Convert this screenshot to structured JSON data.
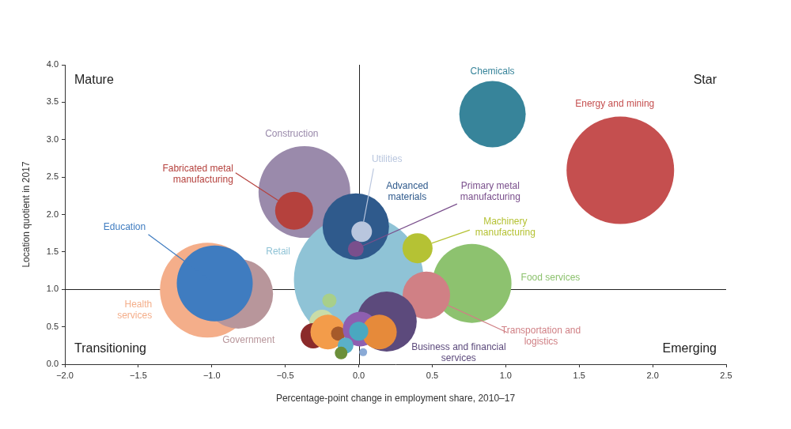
{
  "chart_data": {
    "type": "bubble",
    "x_label": "Percentage-point change in employment share, 2010–17",
    "y_label": "Location quotient in 2017",
    "xlim": [
      -2,
      2.5
    ],
    "ylim": [
      0,
      4
    ],
    "xticks": [
      {
        "value": -2,
        "label": "−2.0"
      },
      {
        "value": -1.5,
        "label": "−1.5"
      },
      {
        "value": -1,
        "label": "−1.0"
      },
      {
        "value": -0.5,
        "label": "−0.5"
      },
      {
        "value": 0,
        "label": "0.0"
      },
      0.5,
      {
        "value": 1,
        "label": "1.0"
      },
      1.5,
      {
        "value": 2,
        "label": "2.0"
      },
      2.5
    ],
    "yticks": [
      {
        "value": 0,
        "label": "0.0"
      },
      0.5,
      {
        "value": 1,
        "label": "1.0"
      },
      1.5,
      {
        "value": 2,
        "label": "2.0"
      },
      2.5,
      {
        "value": 3,
        "label": "3.0"
      },
      3.5,
      {
        "value": 4,
        "label": "4.0"
      }
    ],
    "grid": false,
    "quadrant_lines": {
      "x": 0,
      "y": 1
    },
    "quadrant_labels": [
      "Mature",
      "Star",
      "Transitioning",
      "Emerging"
    ],
    "points": [
      {
        "name": "Energy and mining",
        "x": 1.78,
        "y": 2.59,
        "size": 68,
        "color": "#c54f4f"
      },
      {
        "name": "Chemicals",
        "x": 0.91,
        "y": 3.34,
        "size": 42,
        "color": "#37849a"
      },
      {
        "name": "Construction",
        "x": -0.37,
        "y": 2.3,
        "size": 58,
        "color": "#9a8aab"
      },
      {
        "name": "Fabricated metal manufacturing",
        "x": -0.44,
        "y": 2.05,
        "size": 24,
        "color": "#b5413d"
      },
      {
        "name": "Health services",
        "x": -1.03,
        "y": 0.99,
        "size": 60,
        "color": "#f4ae8a"
      },
      {
        "name": "Government",
        "x": -0.82,
        "y": 0.94,
        "size": 44,
        "color": "#b8969b"
      },
      {
        "name": "Education",
        "x": -0.98,
        "y": 1.08,
        "size": 48,
        "color": "#3f7cc0"
      },
      {
        "name": "Retail",
        "x": 0,
        "y": 1.13,
        "size": 82,
        "color": "#8fc3d6"
      },
      {
        "name": "Advanced materials",
        "x": -0.02,
        "y": 1.84,
        "size": 42,
        "color": "#2f5a8c"
      },
      {
        "name": "Utilities",
        "x": 0.02,
        "y": 1.77,
        "size": 13,
        "color": "#b9c6de"
      },
      {
        "name": "Primary metal manufacturing",
        "x": -0.02,
        "y": 1.54,
        "size": 10,
        "color": "#7a4f8c"
      },
      {
        "name": "Machinery manufacturing",
        "x": 0.4,
        "y": 1.55,
        "size": 19,
        "color": "#b5c234"
      },
      {
        "name": "Food services",
        "x": 0.77,
        "y": 1.08,
        "size": 50,
        "color": "#8dc26f"
      },
      {
        "name": "Transportation and logistics",
        "x": 0.46,
        "y": 0.92,
        "size": 30,
        "color": "#d08085"
      },
      {
        "name": "Business and financial services",
        "x": 0.19,
        "y": 0.57,
        "size": 38,
        "color": "#5c4a7c"
      },
      {
        "name": null,
        "x": -0.2,
        "y": 0.85,
        "size": 9,
        "color": "#a8cf8a"
      },
      {
        "name": null,
        "x": -0.25,
        "y": 0.56,
        "size": 16,
        "color": "#c9dca8"
      },
      {
        "name": null,
        "x": -0.31,
        "y": 0.38,
        "size": 16,
        "color": "#8b2a2a"
      },
      {
        "name": null,
        "x": -0.21,
        "y": 0.43,
        "size": 22,
        "color": "#f39c4a"
      },
      {
        "name": null,
        "x": -0.14,
        "y": 0.41,
        "size": 9,
        "color": "#a65a2a"
      },
      {
        "name": null,
        "x": 0.01,
        "y": 0.47,
        "size": 22,
        "color": "#8e5fb0"
      },
      {
        "name": null,
        "x": 0.14,
        "y": 0.43,
        "size": 22,
        "color": "#e68a3a"
      },
      {
        "name": null,
        "x": 0,
        "y": 0.44,
        "size": 12,
        "color": "#4aa8c0"
      },
      {
        "name": null,
        "x": -0.09,
        "y": 0.25,
        "size": 10,
        "color": "#5bb0c8"
      },
      {
        "name": null,
        "x": -0.12,
        "y": 0.15,
        "size": 8,
        "color": "#6b8f3a"
      },
      {
        "name": null,
        "x": 0.03,
        "y": 0.16,
        "size": 5,
        "color": "#8aaad6"
      }
    ]
  }
}
